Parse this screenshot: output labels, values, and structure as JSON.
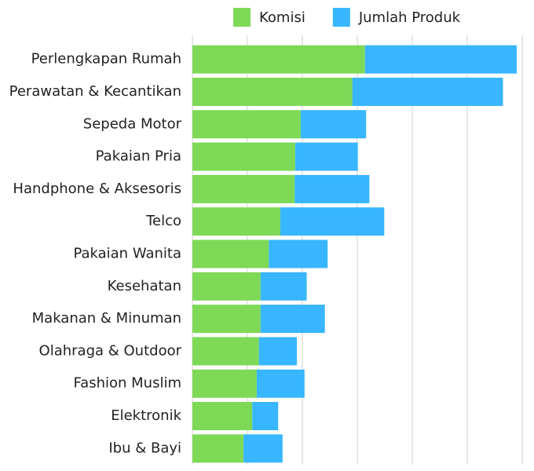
{
  "chart_data": {
    "type": "stacked-bar",
    "orientation": "horizontal",
    "categories": [
      "Perlengkapan Rumah",
      "Perawatan & Kecantikan",
      "Sepeda Motor",
      "Pakaian Pria",
      "Handphone & Aksesoris",
      "Telco",
      "Pakaian Wanita",
      "Kesehatan",
      "Makanan & Minuman",
      "Olahraga & Outdoor",
      "Fashion Muslim",
      "Elektronik",
      "Ibu & Bayi"
    ],
    "series": [
      {
        "name": "Komisi",
        "color": "#7ed957",
        "values": [
          31.4,
          29.1,
          19.7,
          18.7,
          18.6,
          16,
          13.9,
          12.4,
          12.4,
          12.1,
          11.7,
          10.9,
          9.3
        ]
      },
      {
        "name": "Jumlah Produk",
        "color": "#38b6ff",
        "values": [
          27.6,
          27.4,
          11.9,
          11.4,
          13.6,
          18.9,
          10.7,
          8.4,
          11.7,
          6.9,
          8.7,
          4.7,
          7.1
        ]
      }
    ],
    "xlim": [
      0,
      60
    ],
    "xticks": [
      0,
      10,
      20,
      30,
      40,
      50,
      60
    ],
    "grid": true,
    "legend": "top"
  }
}
